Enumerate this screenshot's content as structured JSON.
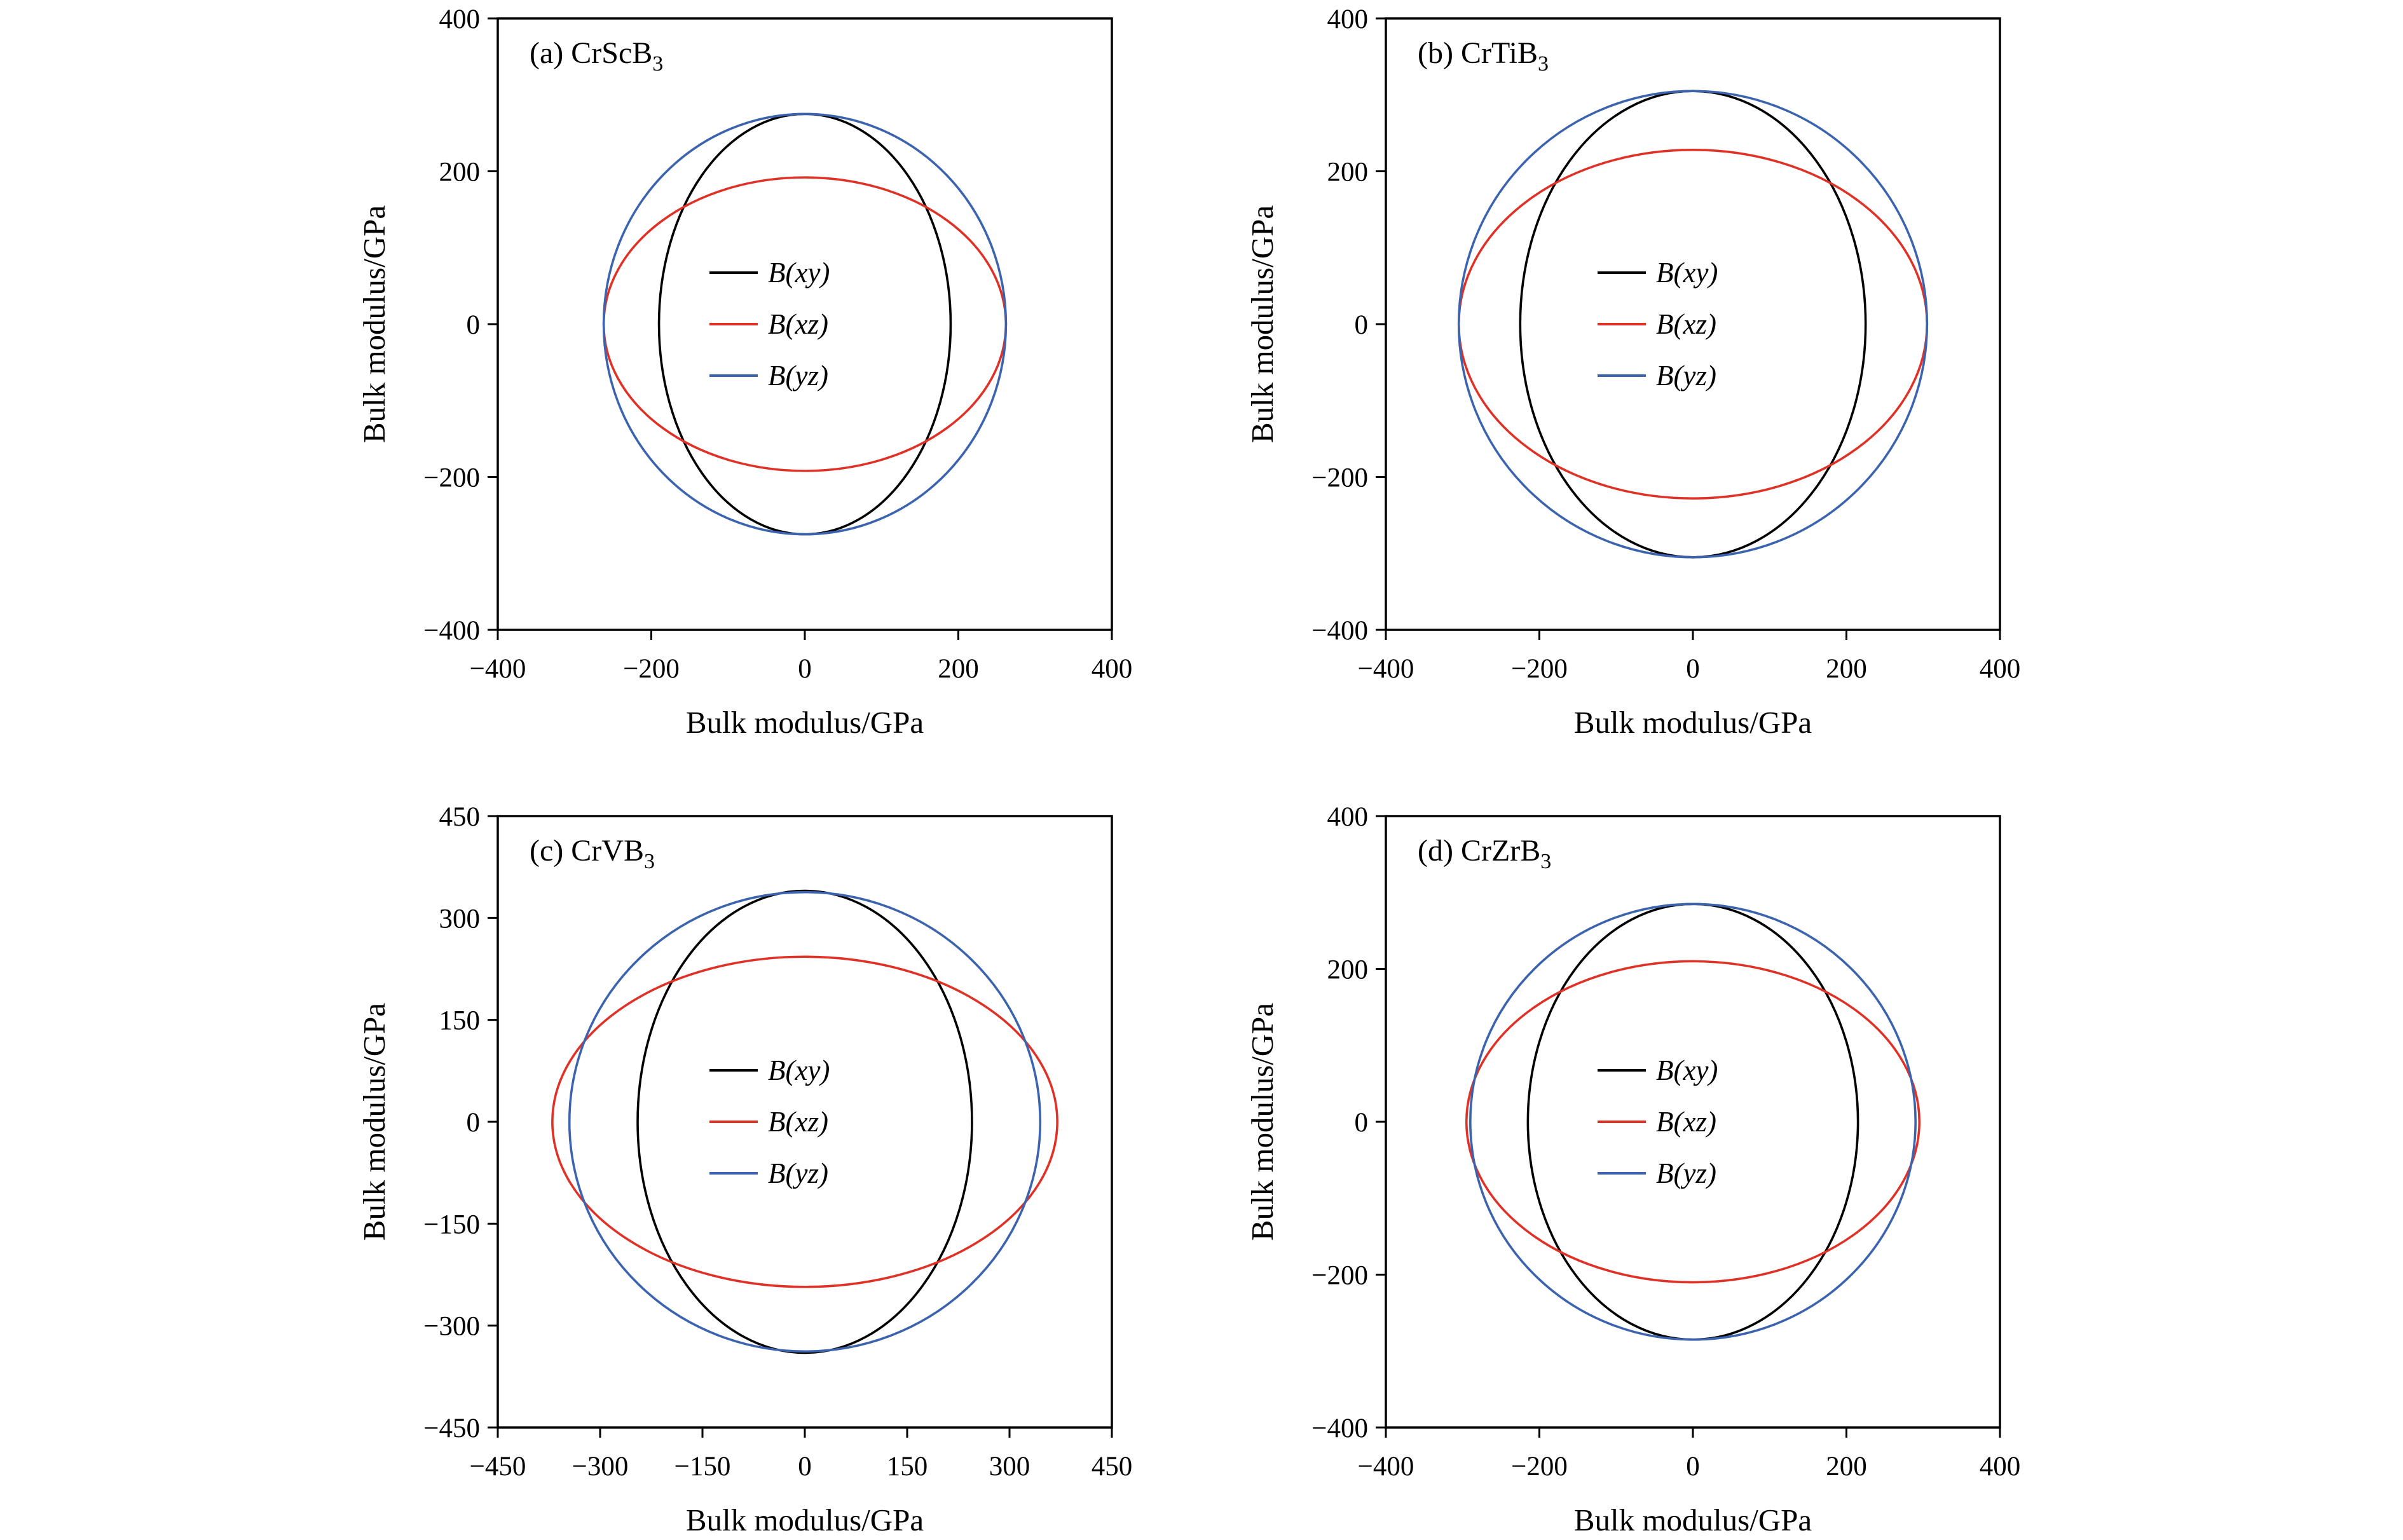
{
  "figure": {
    "background": "#ffffff",
    "axis_color": "#000000",
    "series_colors": {
      "black": "#000000",
      "red": "#e03127",
      "blue": "#3c64ae"
    }
  },
  "chart_data": [
    {
      "type": "line",
      "panel": "a",
      "title_prefix": "(a) CrScB",
      "title_sub": "3",
      "xlabel": "Bulk modulus/GPa",
      "ylabel": "Bulk modulus/GPa",
      "xlim": [
        -400,
        400
      ],
      "ylim": [
        -400,
        400
      ],
      "xticks": [
        -400,
        -200,
        0,
        200,
        400
      ],
      "yticks": [
        -400,
        -200,
        0,
        200,
        400
      ],
      "grid": false,
      "legend_position": "center",
      "series": [
        {
          "name": "B(xy)",
          "shape": "ellipse",
          "center": [
            0,
            0
          ],
          "semi_x": 190,
          "semi_y": 275,
          "color": "#000000"
        },
        {
          "name": "B(xz)",
          "shape": "ellipse",
          "center": [
            0,
            0
          ],
          "semi_x": 262,
          "semi_y": 192,
          "color": "#e03127"
        },
        {
          "name": "B(yz)",
          "shape": "ellipse",
          "center": [
            0,
            0
          ],
          "semi_x": 262,
          "semi_y": 275,
          "color": "#3c64ae"
        }
      ]
    },
    {
      "type": "line",
      "panel": "b",
      "title_prefix": "(b) CrTiB",
      "title_sub": "3",
      "xlabel": "Bulk modulus/GPa",
      "ylabel": "Bulk modulus/GPa",
      "xlim": [
        -400,
        400
      ],
      "ylim": [
        -400,
        400
      ],
      "xticks": [
        -400,
        -200,
        0,
        200,
        400
      ],
      "yticks": [
        -400,
        -200,
        0,
        200,
        400
      ],
      "grid": false,
      "legend_position": "center",
      "series": [
        {
          "name": "B(xy)",
          "shape": "ellipse",
          "center": [
            0,
            0
          ],
          "semi_x": 225,
          "semi_y": 305,
          "color": "#000000"
        },
        {
          "name": "B(xz)",
          "shape": "ellipse",
          "center": [
            0,
            0
          ],
          "semi_x": 305,
          "semi_y": 228,
          "color": "#e03127"
        },
        {
          "name": "B(yz)",
          "shape": "ellipse",
          "center": [
            0,
            0
          ],
          "semi_x": 305,
          "semi_y": 305,
          "color": "#3c64ae"
        }
      ]
    },
    {
      "type": "line",
      "panel": "c",
      "title_prefix": "(c) CrVB",
      "title_sub": "3",
      "xlabel": "Bulk modulus/GPa",
      "ylabel": "Bulk modulus/GPa",
      "xlim": [
        -450,
        450
      ],
      "ylim": [
        -450,
        450
      ],
      "xticks": [
        -450,
        -300,
        -150,
        0,
        150,
        300,
        450
      ],
      "yticks": [
        -450,
        -300,
        -150,
        0,
        150,
        300,
        450
      ],
      "grid": false,
      "legend_position": "center",
      "series": [
        {
          "name": "B(xy)",
          "shape": "ellipse",
          "center": [
            0,
            0
          ],
          "semi_x": 245,
          "semi_y": 340,
          "color": "#000000"
        },
        {
          "name": "B(xz)",
          "shape": "ellipse",
          "center": [
            0,
            0
          ],
          "semi_x": 370,
          "semi_y": 243,
          "color": "#e03127"
        },
        {
          "name": "B(yz)",
          "shape": "ellipse",
          "center": [
            0,
            0
          ],
          "semi_x": 345,
          "semi_y": 338,
          "color": "#3c64ae"
        }
      ]
    },
    {
      "type": "line",
      "panel": "d",
      "title_prefix": "(d) CrZrB",
      "title_sub": "3",
      "xlabel": "Bulk modulus/GPa",
      "ylabel": "Bulk modulus/GPa",
      "xlim": [
        -400,
        400
      ],
      "ylim": [
        -400,
        400
      ],
      "xticks": [
        -400,
        -200,
        0,
        200,
        400
      ],
      "yticks": [
        -400,
        -200,
        0,
        200,
        400
      ],
      "grid": false,
      "legend_position": "center",
      "series": [
        {
          "name": "B(xy)",
          "shape": "ellipse",
          "center": [
            0,
            0
          ],
          "semi_x": 215,
          "semi_y": 285,
          "color": "#000000"
        },
        {
          "name": "B(xz)",
          "shape": "ellipse",
          "center": [
            0,
            0
          ],
          "semi_x": 295,
          "semi_y": 210,
          "color": "#e03127"
        },
        {
          "name": "B(yz)",
          "shape": "ellipse",
          "center": [
            0,
            0
          ],
          "semi_x": 290,
          "semi_y": 285,
          "color": "#3c64ae"
        }
      ]
    }
  ]
}
